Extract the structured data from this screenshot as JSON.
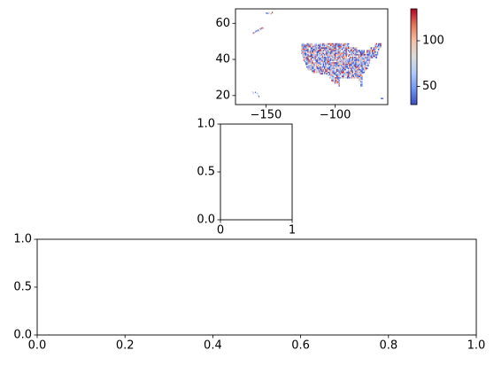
{
  "chart_data": [
    {
      "type": "heatmap",
      "title": "",
      "xlabel": "",
      "ylabel": "",
      "xlim": [
        -172,
        -62
      ],
      "ylim": [
        15,
        68
      ],
      "x_ticks": [
        -150,
        -100
      ],
      "x_tick_labels": [
        "−150",
        "−100"
      ],
      "y_ticks": [
        20,
        40,
        60
      ],
      "y_tick_labels": [
        "20",
        "40",
        "60"
      ],
      "grid": false,
      "colormap": "coolwarm",
      "colormap_stops": [
        "#3b4cc0",
        "#7396f5",
        "#b0cbfc",
        "#dddddd",
        "#f6bfa6",
        "#e7745b",
        "#b40426"
      ],
      "colorbar": {
        "range": [
          30,
          135
        ],
        "ticks": [
          50,
          100
        ],
        "tick_labels": [
          "50",
          "100"
        ]
      },
      "regions": [
        {
          "name": "Contiguous United States",
          "lon": [
            -124.5,
            -67
          ],
          "lat": [
            25,
            49
          ]
        },
        {
          "name": "Alaska",
          "lon": [
            -168,
            -141
          ],
          "lat": [
            54,
            71
          ]
        },
        {
          "name": "Hawaii",
          "lon": [
            -160.5,
            -154.8
          ],
          "lat": [
            18.9,
            22.3
          ]
        },
        {
          "name": "Puerto Rico",
          "lon": [
            -67.3,
            -65.6
          ],
          "lat": [
            17.9,
            18.5
          ]
        }
      ]
    },
    {
      "type": "scatter",
      "title": "",
      "xlabel": "",
      "ylabel": "",
      "xlim": [
        0,
        1
      ],
      "ylim": [
        0,
        1
      ],
      "x_ticks": [
        0,
        1
      ],
      "x_tick_labels": [
        "0",
        "1"
      ],
      "y_ticks": [
        0,
        0.5,
        1
      ],
      "y_tick_labels": [
        "0.0",
        "0.5",
        "1.0"
      ],
      "grid": false,
      "series": []
    },
    {
      "type": "scatter",
      "title": "",
      "xlabel": "",
      "ylabel": "",
      "xlim": [
        0,
        1
      ],
      "ylim": [
        0,
        1
      ],
      "x_ticks": [
        0,
        0.2,
        0.4,
        0.6,
        0.8,
        1
      ],
      "x_tick_labels": [
        "0.0",
        "0.2",
        "0.4",
        "0.6",
        "0.8",
        "1.0"
      ],
      "y_ticks": [
        0,
        0.5,
        1
      ],
      "y_tick_labels": [
        "0.0",
        "0.5",
        "1.0"
      ],
      "grid": false,
      "series": []
    }
  ]
}
